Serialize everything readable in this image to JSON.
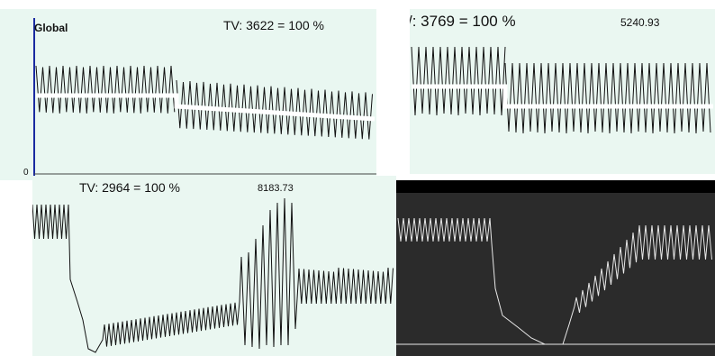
{
  "colors": {
    "panel_bg": "#e9f7f1",
    "trace_dark": "#111111",
    "axis_blue": "#1a2aa0",
    "dark_bg": "#2b2b2b",
    "trace_light": "#e8e8e8"
  },
  "panels": {
    "top_left": {
      "title": "Global",
      "tv_label": "TV: 3622 = 100 %",
      "axis_zero": "0"
    },
    "top_right": {
      "tv_label": "/: 3769 = 100 %",
      "value": "5240.93"
    },
    "bottom_left": {
      "tv_label": "TV: 2964 = 100 %",
      "value": "8183.73"
    },
    "bottom_right": {}
  }
}
